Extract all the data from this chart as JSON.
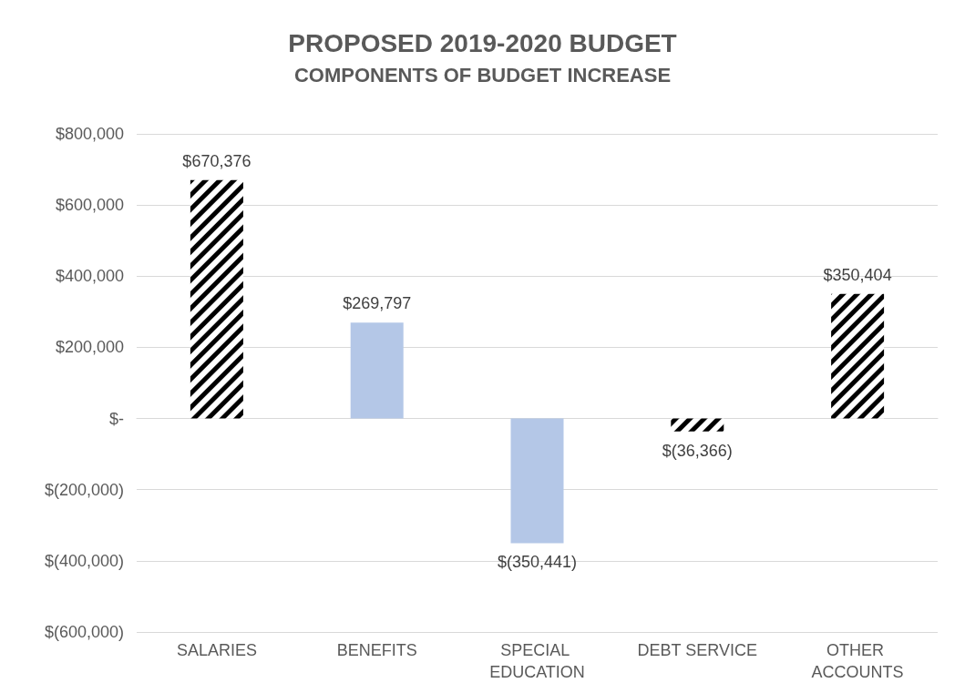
{
  "chart_data": {
    "type": "bar",
    "title": "PROPOSED 2019-2020 BUDGET",
    "subtitle": "COMPONENTS OF BUDGET INCREASE",
    "categories": [
      "SALARIES",
      "BENEFITS",
      "SPECIAL EDUCATION",
      "DEBT SERVICE",
      "OTHER ACCOUNTS"
    ],
    "values": [
      670376,
      269797,
      -350441,
      -36366,
      350404
    ],
    "colors": [
      "#000000",
      "#b4c7e7",
      "#b4c7e7",
      "#000000",
      "#000000"
    ],
    "ylim": [
      -600000,
      800000
    ],
    "yticks": [
      {
        "value": -600000,
        "label": "$(600,000)"
      },
      {
        "value": -400000,
        "label": "$(400,000)"
      },
      {
        "value": -200000,
        "label": "$(200,000)"
      },
      {
        "value": 0,
        "label": "$-"
      },
      {
        "value": 200000,
        "label": "$200,000"
      },
      {
        "value": 400000,
        "label": "$400,000"
      },
      {
        "value": 600000,
        "label": "$600,000"
      },
      {
        "value": 800000,
        "label": "$800,000"
      }
    ],
    "value_labels": [
      "$670,376",
      "$269,797",
      "$(350,441)",
      "$(36,366)",
      "$350,404"
    ],
    "grid": true
  }
}
